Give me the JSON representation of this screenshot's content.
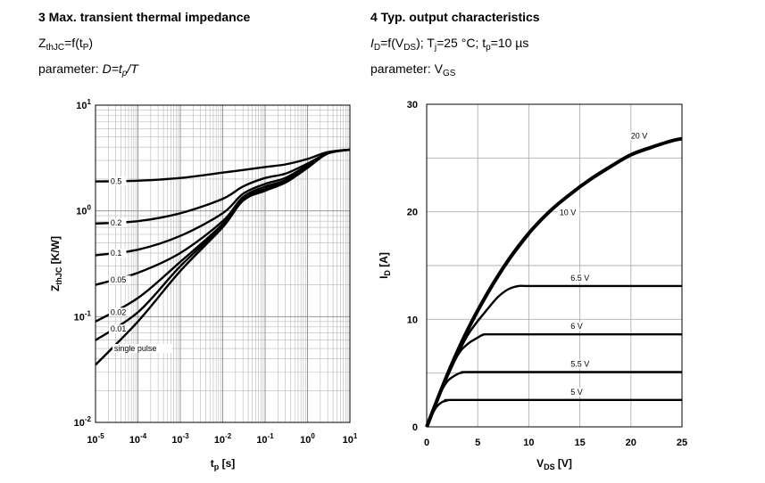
{
  "left": {
    "title": "3 Max. transient thermal impedance",
    "subtitle": {
      "main": "Z",
      "sub": "thJC",
      "rest": "=f(t",
      "sub2": "P",
      "end": ")"
    },
    "parameter": {
      "prefix": "parameter: ",
      "text": "D=t",
      "sub": "p",
      "end": "/T"
    }
  },
  "right": {
    "title": "4 Typ. output characteristics",
    "subtitle": {
      "a": "I",
      "asub": "D",
      "b": "=f(V",
      "bsub": "DS",
      "c": "); T",
      "csub": "j",
      "d": "=25 °C; t",
      "dsub": "p",
      "e": "=10 µs"
    },
    "parameter": {
      "prefix": "parameter: V",
      "sub": "GS"
    }
  },
  "chart_data": [
    {
      "type": "line",
      "scale": "log-log",
      "title": "3 Max. transient thermal impedance",
      "xlabel": {
        "main": "t",
        "sub": "p",
        "unit": " [s]"
      },
      "ylabel": {
        "main": "Z",
        "sub": "thJC",
        "unit": " [K/W]"
      },
      "xlim": [
        1e-05,
        10
      ],
      "ylim": [
        0.01,
        10
      ],
      "grid": true,
      "x_ticks": [
        {
          "base": "10",
          "exp": "-5"
        },
        {
          "base": "10",
          "exp": "-4"
        },
        {
          "base": "10",
          "exp": "-3"
        },
        {
          "base": "10",
          "exp": "-2"
        },
        {
          "base": "10",
          "exp": "-1"
        },
        {
          "base": "10",
          "exp": "0"
        },
        {
          "base": "10",
          "exp": "1"
        }
      ],
      "y_ticks": [
        {
          "base": "10",
          "exp": "-2"
        },
        {
          "base": "10",
          "exp": "-1"
        },
        {
          "base": "10",
          "exp": "0"
        },
        {
          "base": "10",
          "exp": "1"
        }
      ],
      "series": [
        {
          "name": "0.5",
          "x": [
            1e-05,
            0.0001,
            0.001,
            0.01,
            0.1,
            0.3,
            1,
            3,
            10
          ],
          "y": [
            1.9,
            1.93,
            2.05,
            2.3,
            2.6,
            2.75,
            3.1,
            3.6,
            3.8
          ]
        },
        {
          "name": "0.2",
          "x": [
            1e-05,
            0.0001,
            0.001,
            0.01,
            0.03,
            0.1,
            0.3,
            1,
            3,
            10
          ],
          "y": [
            0.76,
            0.8,
            0.95,
            1.3,
            1.7,
            2.05,
            2.25,
            2.8,
            3.5,
            3.8
          ]
        },
        {
          "name": "0.1",
          "x": [
            1e-05,
            0.0001,
            0.001,
            0.01,
            0.03,
            0.1,
            0.3,
            1,
            3,
            10
          ],
          "y": [
            0.38,
            0.43,
            0.58,
            0.95,
            1.45,
            1.8,
            2.05,
            2.7,
            3.5,
            3.8
          ]
        },
        {
          "name": "0.05",
          "x": [
            1e-05,
            0.0001,
            0.001,
            0.01,
            0.03,
            0.1,
            0.3,
            1,
            3,
            10
          ],
          "y": [
            0.2,
            0.26,
            0.4,
            0.8,
            1.35,
            1.7,
            1.95,
            2.65,
            3.5,
            3.8
          ]
        },
        {
          "name": "0.02",
          "x": [
            1e-05,
            0.0001,
            0.001,
            0.01,
            0.03,
            0.1,
            0.3,
            1,
            3,
            10
          ],
          "y": [
            0.09,
            0.15,
            0.33,
            0.75,
            1.3,
            1.62,
            1.9,
            2.6,
            3.5,
            3.8
          ]
        },
        {
          "name": "0.01",
          "x": [
            1e-05,
            0.0001,
            0.001,
            0.01,
            0.03,
            0.1,
            0.3,
            1,
            3,
            10
          ],
          "y": [
            0.06,
            0.11,
            0.3,
            0.72,
            1.28,
            1.58,
            1.88,
            2.58,
            3.5,
            3.8
          ]
        },
        {
          "name": "single pulse",
          "x": [
            1e-05,
            0.0001,
            0.001,
            0.01,
            0.03,
            0.1,
            0.3,
            1,
            3,
            10
          ],
          "y": [
            0.035,
            0.09,
            0.27,
            0.7,
            1.25,
            1.55,
            1.85,
            2.55,
            3.5,
            3.8
          ]
        }
      ]
    },
    {
      "type": "line",
      "title": "4 Typ. output characteristics",
      "xlabel": {
        "main": "V",
        "sub": "DS",
        "unit": " [V]"
      },
      "ylabel": {
        "main": "I",
        "sub": "D",
        "unit": " [A]"
      },
      "xlim": [
        0,
        25
      ],
      "ylim": [
        0,
        30
      ],
      "grid": true,
      "x_ticks": [
        "0",
        "5",
        "10",
        "15",
        "20",
        "25"
      ],
      "y_ticks": [
        "0",
        "10",
        "20",
        "30"
      ],
      "series": [
        {
          "name": "20 V",
          "x": [
            0,
            2,
            4,
            6,
            8,
            10,
            12,
            14,
            16,
            18,
            20,
            22,
            24,
            25
          ],
          "y": [
            0,
            4.8,
            9.0,
            12.5,
            15.5,
            18.0,
            20.0,
            21.6,
            23.0,
            24.2,
            25.3,
            26.0,
            26.6,
            26.8
          ]
        },
        {
          "name": "10 V",
          "x": [
            0,
            2,
            4,
            6,
            8,
            10
          ],
          "y": [
            0,
            4.8,
            9.0,
            12.5,
            15.5,
            18.0
          ]
        },
        {
          "name": "6.5 V",
          "x": [
            0,
            2,
            4,
            6,
            7,
            8,
            9,
            10,
            15,
            25
          ],
          "y": [
            0,
            4.6,
            8.5,
            11.0,
            12.1,
            12.8,
            13.1,
            13.1,
            13.1,
            13.1
          ]
        },
        {
          "name": "6 V",
          "x": [
            0,
            1.5,
            3,
            4,
            5,
            5.5,
            6,
            10,
            25
          ],
          "y": [
            0,
            3.6,
            6.6,
            7.7,
            8.3,
            8.55,
            8.6,
            8.6,
            8.6
          ]
        },
        {
          "name": "5.5 V",
          "x": [
            0,
            1,
            2,
            3,
            3.5,
            4,
            10,
            25
          ],
          "y": [
            0,
            2.5,
            4.2,
            4.9,
            5.05,
            5.1,
            5.1,
            5.1
          ]
        },
        {
          "name": "5 V",
          "x": [
            0,
            0.5,
            1,
            1.5,
            2,
            2.5,
            10,
            25
          ],
          "y": [
            0,
            1.1,
            1.9,
            2.3,
            2.45,
            2.5,
            2.5,
            2.5
          ]
        }
      ]
    }
  ]
}
